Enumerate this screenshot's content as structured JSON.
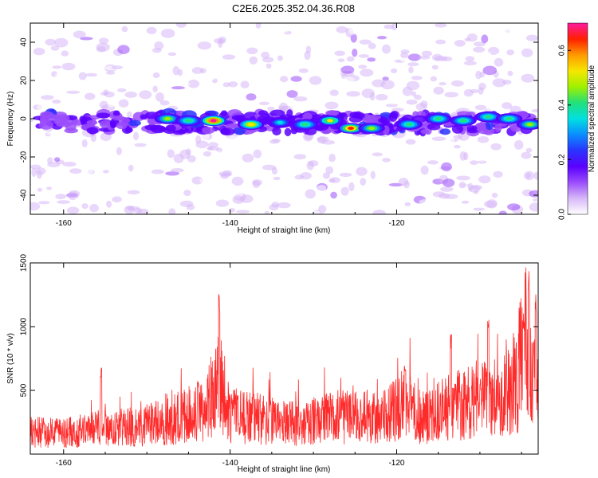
{
  "chart_data": [
    {
      "type": "heatmap",
      "title": "C2E6.2025.352.04.36.R08",
      "xlabel": "Height of straight line (km)",
      "ylabel": "Frequency (Hz)",
      "xlim": [
        -164,
        -103
      ],
      "ylim": [
        -50,
        50
      ],
      "xticks": [
        -160,
        -140,
        -120
      ],
      "yticks": [
        -40,
        -20,
        0,
        20,
        40
      ],
      "colorbar": {
        "label": "Normalized spectral amplitude",
        "range": [
          0.0,
          0.7
        ],
        "ticks": [
          "0.0",
          "0.2",
          "0.4",
          "0.6"
        ],
        "tick_values": [
          0.0,
          0.2,
          0.4,
          0.6
        ],
        "colors": [
          "#ffffff",
          "#d7b8f7",
          "#9b4dfc",
          "#5a00ff",
          "#2a33ff",
          "#0a8dff",
          "#00e0e0",
          "#22e07a",
          "#9ff000",
          "#f6e600",
          "#ff9a00",
          "#ff2000",
          "#ff1aa0"
        ]
      },
      "band": {
        "center_hz": -2,
        "halfwidth_hz": 5,
        "hotspots": [
          {
            "x": -147.5,
            "y": 0,
            "v": 0.45
          },
          {
            "x": -145,
            "y": -1,
            "v": 0.4
          },
          {
            "x": -142,
            "y": -1,
            "v": 0.7
          },
          {
            "x": -137.5,
            "y": -3,
            "v": 0.55
          },
          {
            "x": -134,
            "y": -2,
            "v": 0.35
          },
          {
            "x": -131,
            "y": -3,
            "v": 0.4
          },
          {
            "x": -128,
            "y": -1,
            "v": 0.5
          },
          {
            "x": -125.5,
            "y": -5,
            "v": 0.62
          },
          {
            "x": -123,
            "y": -5,
            "v": 0.45
          },
          {
            "x": -118.5,
            "y": -3,
            "v": 0.4
          },
          {
            "x": -115,
            "y": 0,
            "v": 0.38
          },
          {
            "x": -112,
            "y": -1,
            "v": 0.42
          },
          {
            "x": -109,
            "y": 1,
            "v": 0.4
          },
          {
            "x": -106.5,
            "y": 0,
            "v": 0.4
          },
          {
            "x": -104,
            "y": -3,
            "v": 0.45
          }
        ]
      }
    },
    {
      "type": "line",
      "title": "",
      "xlabel": "Height of straight line (km)",
      "ylabel": "SNR (10 * v/v)",
      "xlim": [
        -164,
        -103
      ],
      "ylim": [
        0,
        1500
      ],
      "xticks": [
        -160,
        -140,
        -120
      ],
      "yticks": [
        500,
        1000,
        1500
      ],
      "color": "#ff2a2a",
      "baseline_points": [
        {
          "x": -164,
          "y": 180
        },
        {
          "x": -160,
          "y": 170
        },
        {
          "x": -156,
          "y": 210
        },
        {
          "x": -152,
          "y": 220
        },
        {
          "x": -148,
          "y": 260
        },
        {
          "x": -145,
          "y": 330
        },
        {
          "x": -143,
          "y": 360
        },
        {
          "x": -141.5,
          "y": 650
        },
        {
          "x": -140,
          "y": 320
        },
        {
          "x": -137,
          "y": 300
        },
        {
          "x": -134,
          "y": 260
        },
        {
          "x": -131,
          "y": 250
        },
        {
          "x": -128,
          "y": 310
        },
        {
          "x": -124,
          "y": 300
        },
        {
          "x": -122,
          "y": 290
        },
        {
          "x": -119,
          "y": 420
        },
        {
          "x": -117,
          "y": 300
        },
        {
          "x": -114,
          "y": 380
        },
        {
          "x": -111,
          "y": 430
        },
        {
          "x": -108,
          "y": 470
        },
        {
          "x": -105.5,
          "y": 650
        },
        {
          "x": -104.5,
          "y": 900
        },
        {
          "x": -103.5,
          "y": 600
        },
        {
          "x": -103,
          "y": 520
        }
      ],
      "peaks": [
        {
          "x": -155.5,
          "y": 690
        },
        {
          "x": -141.3,
          "y": 1270
        },
        {
          "x": -119,
          "y": 710
        },
        {
          "x": -113.5,
          "y": 950
        },
        {
          "x": -109,
          "y": 1090
        },
        {
          "x": -104.8,
          "y": 1150
        },
        {
          "x": -104.1,
          "y": 1500
        },
        {
          "x": -103.3,
          "y": 1270
        }
      ]
    }
  ]
}
